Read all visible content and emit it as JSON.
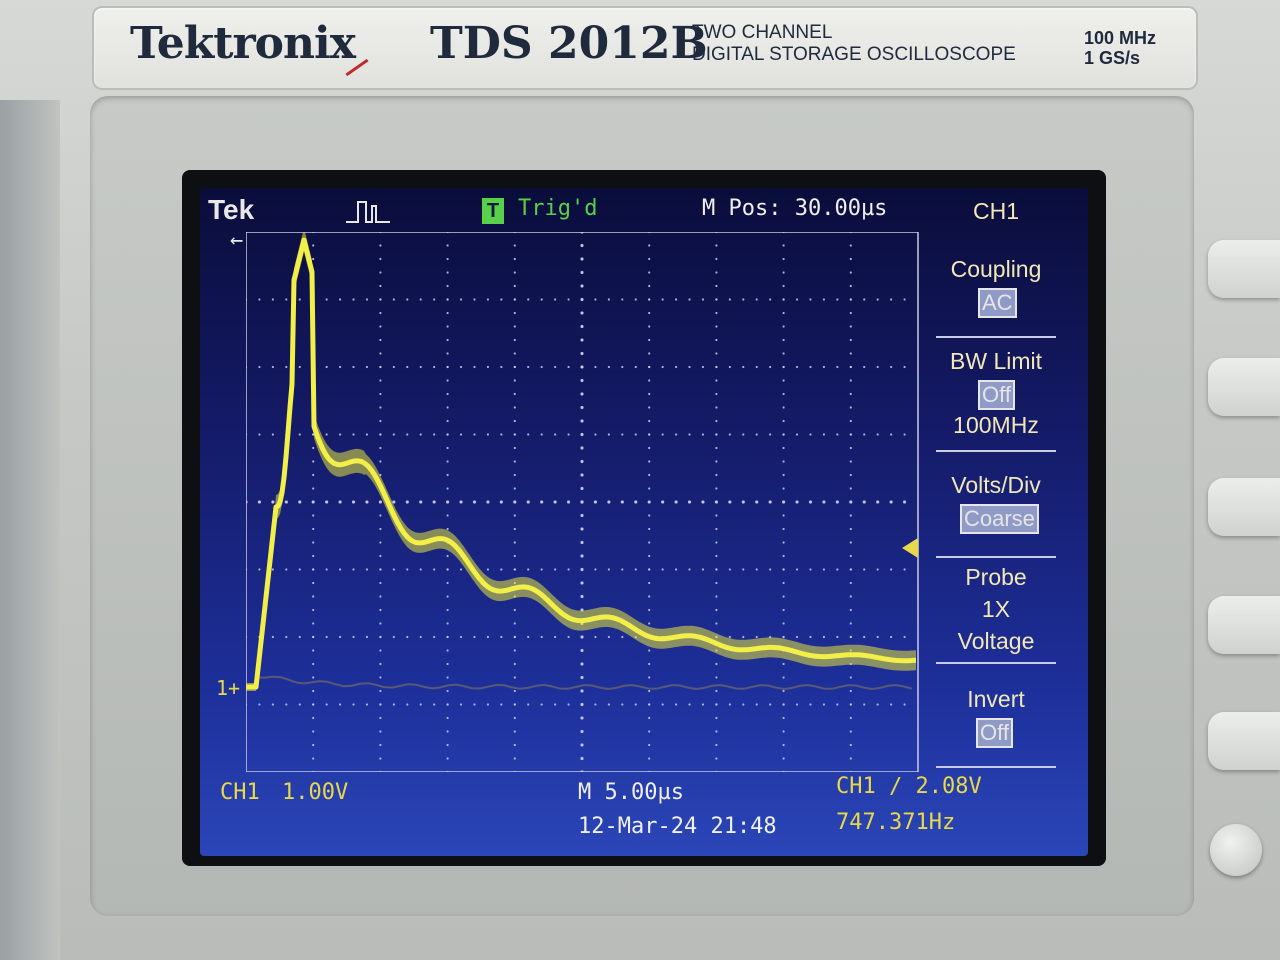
{
  "panel": {
    "brand": "Tektronix",
    "model": "TDS 2012B",
    "description_line1": "TWO  CHANNEL",
    "description_line2": "DIGITAL STORAGE OSCILLOSCOPE",
    "bandwidth": "100 MHz",
    "sample_rate": "1 GS/s"
  },
  "status_bar": {
    "logo": "Tek",
    "trigger_state": "Trig'd",
    "trigger_icon": "T",
    "m_pos": "M Pos: 30.00µs",
    "acq_icon": "acquire-pulse-icon"
  },
  "menu": {
    "channel": "CH1",
    "coupling_label": "Coupling",
    "coupling_value": "AC",
    "bw_limit_label": "BW Limit",
    "bw_limit_value": "Off",
    "bw_limit_sub": "100MHz",
    "volts_div_label": "Volts/Div",
    "volts_div_value": "Coarse",
    "probe_label": "Probe",
    "probe_value_1": "1X",
    "probe_value_2": "Voltage",
    "invert_label": "Invert",
    "invert_value": "Off"
  },
  "bottom_bar": {
    "ch1_label": "CH1",
    "ch1_scale": "1.00V",
    "timebase": "M 5.00µs",
    "trigger": "CH1 ∕ 2.08V",
    "datetime": "12-Mar-24 21:48",
    "frequency": "747.371Hz"
  },
  "markers": {
    "channel_marker": "1+",
    "trigger_arrow": "←"
  },
  "colors": {
    "trace": "#e6e43a",
    "screen_text": "#e8d84a",
    "grid_dots": "#c9cbe6"
  }
}
